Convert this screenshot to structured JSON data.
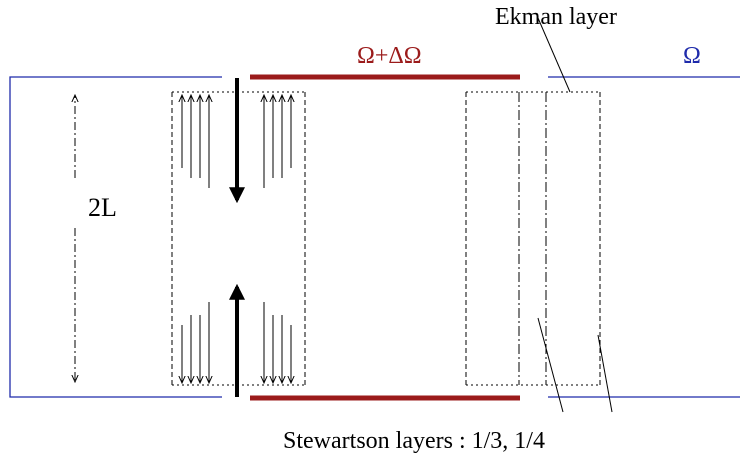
{
  "labels": {
    "ekman": "Ekman layer",
    "omega_inner": "Ω+ΔΩ",
    "omega_outer": "Ω",
    "height": "2L",
    "stewartson": "Stewartson layers : 1/3, 1/4"
  },
  "colors": {
    "inner_lid": "#9b1b1b",
    "outer_wall": "#1f2bab",
    "ink": "#000000"
  }
}
